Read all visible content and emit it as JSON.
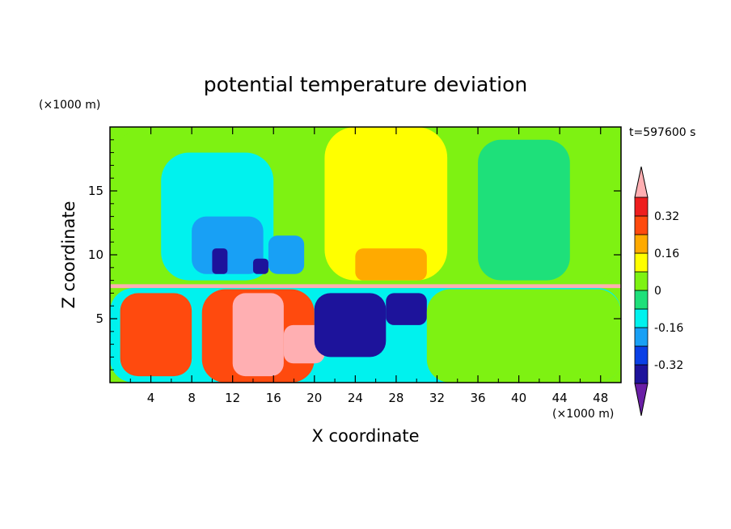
{
  "chart_data": {
    "type": "heatmap",
    "title": "potential temperature deviation",
    "time_label": "t=597600 s",
    "xlabel": "X coordinate",
    "ylabel": "Z coordinate",
    "x_unit": "(×1000 m)",
    "y_unit": "(×1000 m)",
    "xlim": [
      0,
      50
    ],
    "ylim": [
      0,
      20
    ],
    "x_ticks": [
      4,
      8,
      12,
      16,
      20,
      24,
      28,
      32,
      36,
      40,
      44,
      48
    ],
    "y_ticks": [
      5,
      10,
      15
    ],
    "colorbar": {
      "labels": [
        "0.32",
        "0.16",
        "0",
        "-0.16",
        "-0.32"
      ],
      "label_values": [
        0.32,
        0.16,
        0,
        -0.16,
        -0.32
      ],
      "levels": [
        -0.4,
        -0.32,
        -0.24,
        -0.16,
        -0.08,
        0,
        0.08,
        0.16,
        0.24,
        0.32,
        0.4
      ],
      "colors": [
        "#6a1fa6",
        "#1d139b",
        "#0a40e6",
        "#18a0f5",
        "#00f2ee",
        "#1ee07a",
        "#7ef212",
        "#ffff00",
        "#ffaa00",
        "#ff4a0e",
        "#ee1e1e",
        "#ffafb2"
      ]
    },
    "regions": [
      {
        "x": [
          0,
          50
        ],
        "z": [
          7.6,
          20
        ],
        "value": 0.05
      },
      {
        "x": [
          5,
          16
        ],
        "z": [
          8,
          18
        ],
        "value": -0.1
      },
      {
        "x": [
          8,
          15
        ],
        "z": [
          8.5,
          13
        ],
        "value": -0.2
      },
      {
        "x": [
          15.5,
          19
        ],
        "z": [
          8.5,
          11.5
        ],
        "value": -0.2
      },
      {
        "x": [
          10,
          11.5
        ],
        "z": [
          8.5,
          10.5
        ],
        "value": -0.35
      },
      {
        "x": [
          14,
          15.5
        ],
        "z": [
          8.5,
          9.7
        ],
        "value": -0.35
      },
      {
        "x": [
          21,
          33
        ],
        "z": [
          8,
          20
        ],
        "value": 0.12
      },
      {
        "x": [
          24,
          31
        ],
        "z": [
          8,
          10.5
        ],
        "value": 0.2
      },
      {
        "x": [
          36,
          45
        ],
        "z": [
          8,
          19
        ],
        "value": -0.02
      },
      {
        "x": [
          0,
          50
        ],
        "z": [
          7.4,
          7.7
        ],
        "value": 0.45
      },
      {
        "x": [
          0,
          50
        ],
        "z": [
          0,
          7.4
        ],
        "value": -0.1
      },
      {
        "x": [
          1,
          8
        ],
        "z": [
          0.5,
          7
        ],
        "value": 0.3
      },
      {
        "x": [
          9,
          20
        ],
        "z": [
          0,
          7.3
        ],
        "value": 0.25
      },
      {
        "x": [
          12,
          17
        ],
        "z": [
          0.5,
          7
        ],
        "value": 0.45
      },
      {
        "x": [
          17,
          21
        ],
        "z": [
          1.5,
          4.5
        ],
        "value": 0.45
      },
      {
        "x": [
          20,
          27
        ],
        "z": [
          2,
          7
        ],
        "value": -0.4
      },
      {
        "x": [
          27,
          31
        ],
        "z": [
          4.5,
          7
        ],
        "value": -0.4
      },
      {
        "x": [
          31,
          50
        ],
        "z": [
          0,
          7.3
        ],
        "value": 0
      }
    ]
  }
}
